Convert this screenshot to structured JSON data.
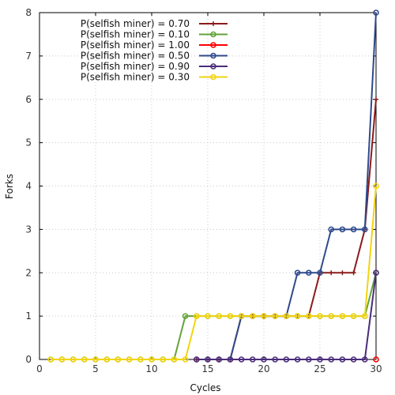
{
  "chart_data": {
    "type": "line",
    "title": "",
    "xlabel": "Cycles",
    "ylabel": "Forks",
    "xlim": [
      0,
      30
    ],
    "ylim": [
      0,
      8
    ],
    "xticks": [
      0,
      5,
      10,
      15,
      20,
      25,
      30
    ],
    "yticks": [
      0,
      1,
      2,
      3,
      4,
      5,
      6,
      7,
      8
    ],
    "grid": true,
    "legend_position": "top-left",
    "series": [
      {
        "name": "P(selfish miner) = 0.70",
        "color": "#8b1a1a",
        "marker": "plus",
        "x": [
          14,
          15,
          16,
          17,
          18,
          19,
          20,
          21,
          22,
          23,
          24,
          25,
          26,
          27,
          28,
          29,
          30
        ],
        "y": [
          0,
          0,
          0,
          0,
          1,
          1,
          1,
          1,
          1,
          1,
          1,
          2,
          2,
          2,
          2,
          3,
          6
        ]
      },
      {
        "name": "P(selfish miner) = 0.10",
        "color": "#62a33a",
        "marker": "circle",
        "x": [
          1,
          2,
          3,
          4,
          5,
          6,
          7,
          8,
          9,
          10,
          11,
          12,
          13,
          14,
          15,
          16,
          17,
          18,
          19,
          20,
          21,
          22,
          23,
          24,
          25,
          26,
          27,
          28,
          29,
          30
        ],
        "y": [
          0,
          0,
          0,
          0,
          0,
          0,
          0,
          0,
          0,
          0,
          0,
          0,
          1,
          1,
          1,
          1,
          1,
          1,
          1,
          1,
          1,
          1,
          1,
          1,
          1,
          1,
          1,
          1,
          1,
          2
        ]
      },
      {
        "name": "P(selfish miner) = 1.00",
        "color": "#ff0000",
        "marker": "circle",
        "x": [
          30
        ],
        "y": [
          0
        ]
      },
      {
        "name": "P(selfish miner) = 0.50",
        "color": "#2e4a8c",
        "marker": "circle",
        "x": [
          14,
          15,
          16,
          17,
          18,
          19,
          20,
          21,
          22,
          23,
          24,
          25,
          26,
          27,
          28,
          29,
          30
        ],
        "y": [
          0,
          0,
          0,
          0,
          1,
          1,
          1,
          1,
          1,
          2,
          2,
          2,
          3,
          3,
          3,
          3,
          8
        ]
      },
      {
        "name": "P(selfish miner) = 0.90",
        "color": "#4a2c7a",
        "marker": "circle",
        "x": [
          14,
          15,
          16,
          17,
          18,
          19,
          20,
          21,
          22,
          23,
          24,
          25,
          26,
          27,
          28,
          29,
          30
        ],
        "y": [
          0,
          0,
          0,
          0,
          0,
          0,
          0,
          0,
          0,
          0,
          0,
          0,
          0,
          0,
          0,
          0,
          2
        ]
      },
      {
        "name": "P(selfish miner) = 0.30",
        "color": "#f2d40f",
        "marker": "circle",
        "x": [
          1,
          2,
          3,
          4,
          5,
          6,
          7,
          8,
          9,
          10,
          11,
          12,
          13,
          14,
          15,
          16,
          17,
          18,
          19,
          20,
          21,
          22,
          23,
          24,
          25,
          26,
          27,
          28,
          29,
          30
        ],
        "y": [
          0,
          0,
          0,
          0,
          0,
          0,
          0,
          0,
          0,
          0,
          0,
          0,
          0,
          1,
          1,
          1,
          1,
          1,
          1,
          1,
          1,
          1,
          1,
          1,
          1,
          1,
          1,
          1,
          1,
          4
        ]
      }
    ]
  }
}
